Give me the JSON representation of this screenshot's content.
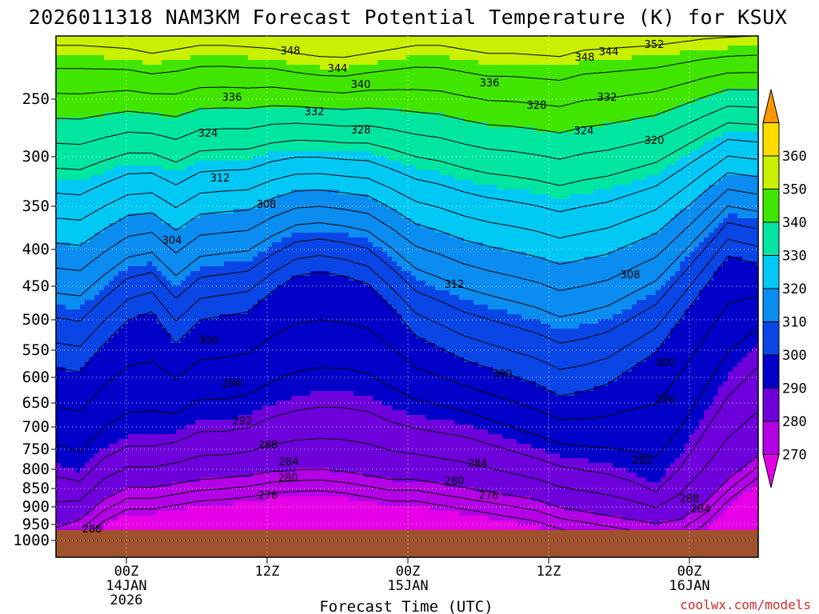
{
  "chart_data": {
    "type": "contour",
    "title": "2026011318 NAM3KM Forecast Potential Temperature (K) for KSUX",
    "xlabel": "Forecast Time (UTC)",
    "ylabel": "",
    "ylim": [
      1000,
      200
    ],
    "y_ticks": [
      "250",
      "300",
      "350",
      "400",
      "450",
      "500",
      "550",
      "600",
      "650",
      "700",
      "750",
      "800",
      "850",
      "900",
      "950",
      "1000"
    ],
    "x_ticks": [
      {
        "line1": "00Z",
        "line2": "14JAN",
        "line3": "2026"
      },
      {
        "line1": "12Z",
        "line2": "",
        "line3": ""
      },
      {
        "line1": "00Z",
        "line2": "15JAN",
        "line3": ""
      },
      {
        "line1": "12Z",
        "line2": "",
        "line3": ""
      },
      {
        "line1": "00Z",
        "line2": "16JAN",
        "line3": ""
      }
    ],
    "colorbar": {
      "ticks": [
        "270",
        "280",
        "290",
        "300",
        "310",
        "320",
        "330",
        "340",
        "350",
        "360"
      ],
      "colors": [
        "#e600e6",
        "#b400e6",
        "#6e00dc",
        "#0000c8",
        "#0a46e6",
        "#0a8cf0",
        "#00c8f5",
        "#00e6a0",
        "#41e600",
        "#c8f000",
        "#ffdc00",
        "#ff9600"
      ]
    },
    "contour_labels": [
      "348",
      "352",
      "344",
      "348",
      "344",
      "340",
      "336",
      "336",
      "328",
      "332",
      "332",
      "328",
      "324",
      "324",
      "320",
      "312",
      "308",
      "304",
      "312",
      "308",
      "300",
      "300",
      "300",
      "296",
      "296",
      "292",
      "292",
      "288",
      "284",
      "284",
      "280",
      "280",
      "276",
      "276",
      "288",
      "284",
      "288"
    ],
    "credit": "coolwx.com/models"
  }
}
